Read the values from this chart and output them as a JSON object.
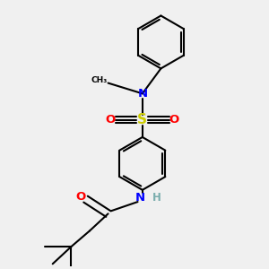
{
  "bg_color": "#f0f0f0",
  "bond_color": "#000000",
  "N_color": "#0000ff",
  "S_color": "#cccc00",
  "O_color": "#ff0000",
  "H_color": "#7aadad",
  "line_width": 1.5,
  "figsize": [
    3.0,
    3.0
  ],
  "dpi": 100,
  "xlim": [
    0,
    10
  ],
  "ylim": [
    0,
    10
  ]
}
